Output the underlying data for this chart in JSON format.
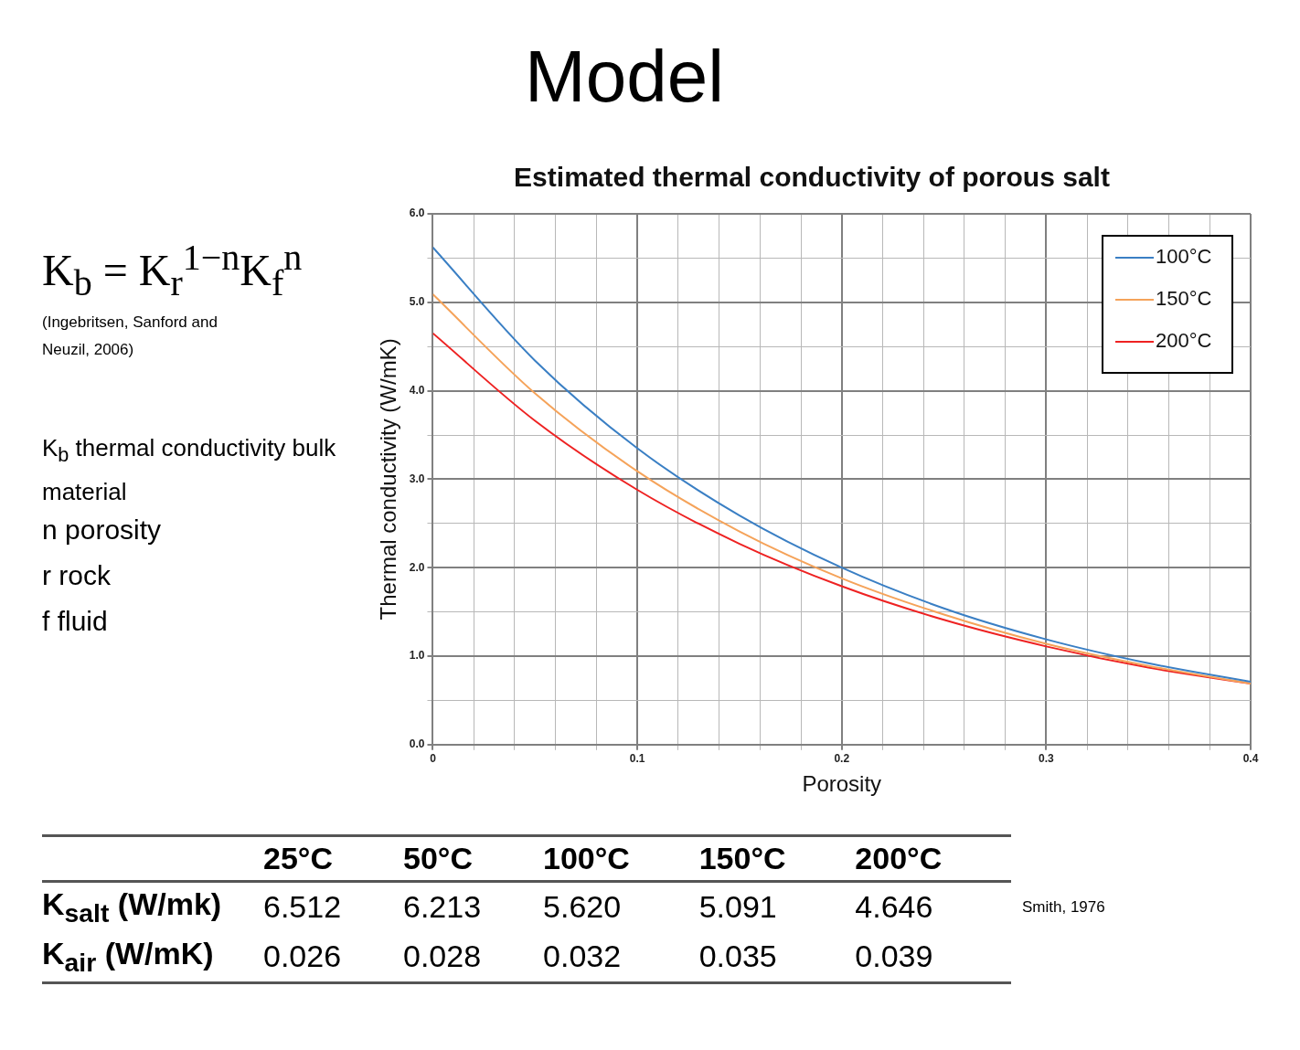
{
  "chart_data": {
    "type": "line",
    "title": "Model",
    "subtitle": "Estimated thermal conductivity of porous salt",
    "xlabel": "Porosity",
    "ylabel": "Thermal conductivity (W/mK)",
    "x": [
      0,
      0.05,
      0.1,
      0.15,
      0.2,
      0.25,
      0.3,
      0.35,
      0.4
    ],
    "series": [
      {
        "name": "100°C",
        "color": "#3a7fc4",
        "values": [
          5.62,
          4.34,
          3.35,
          2.59,
          2.0,
          1.54,
          1.19,
          0.92,
          0.71
        ]
      },
      {
        "name": "150°C",
        "color": "#f5a35a",
        "values": [
          5.09,
          3.97,
          3.09,
          2.41,
          1.88,
          1.47,
          1.14,
          0.89,
          0.69
        ]
      },
      {
        "name": "200°C",
        "color": "#ee2222",
        "values": [
          4.65,
          3.66,
          2.88,
          2.27,
          1.79,
          1.41,
          1.11,
          0.87,
          0.69
        ]
      }
    ],
    "xlim": [
      0,
      0.4
    ],
    "xticks": [
      0,
      {
        "value": 0.02,
        "label": null
      },
      {
        "value": 0.04,
        "label": null
      },
      {
        "value": 0.06,
        "label": null
      },
      {
        "value": 0.08,
        "label": null
      },
      0.1,
      {
        "value": 0.12,
        "label": null
      },
      {
        "value": 0.14,
        "label": null
      },
      {
        "value": 0.16,
        "label": null
      },
      {
        "value": 0.18,
        "label": null
      },
      0.2,
      {
        "value": 0.22,
        "label": null
      },
      {
        "value": 0.24,
        "label": null
      },
      {
        "value": 0.26,
        "label": null
      },
      {
        "value": 0.28,
        "label": null
      },
      0.3,
      {
        "value": 0.32,
        "label": null
      },
      {
        "value": 0.34,
        "label": null
      },
      {
        "value": 0.36,
        "label": null
      },
      {
        "value": 0.38,
        "label": null
      },
      0.4
    ],
    "ylim": [
      0,
      6
    ],
    "yticks": [
      {
        "value": 0,
        "label": "0.0"
      },
      {
        "value": 0.5,
        "label": null
      },
      {
        "value": 1,
        "label": "1.0"
      },
      {
        "value": 1.5,
        "label": null
      },
      {
        "value": 2,
        "label": "2.0"
      },
      {
        "value": 2.5,
        "label": null
      },
      {
        "value": 3,
        "label": "3.0"
      },
      {
        "value": 3.5,
        "label": null
      },
      {
        "value": 4,
        "label": "4.0"
      },
      {
        "value": 4.5,
        "label": null
      },
      {
        "value": 5,
        "label": "5.0"
      },
      {
        "value": 5.5,
        "label": null
      },
      {
        "value": 6,
        "label": "6.0"
      }
    ],
    "grid": true,
    "legend": "top right",
    "marker": "none",
    "line_style": "solid",
    "annotations": [
      "K$_{b}$ = K$_{r}$$^{1−n}$K$_{f}$$^{n}$",
      "(Ingebritsen, Sanford and Neuzil, 2006)",
      "K$_{b}$ thermal conductivity bulk material",
      "n porosity",
      "r rock",
      "f fluid",
      "Smith, 1976",
      "25°C",
      "50°C",
      "100°C",
      "150°C",
      "200°C",
      "K$_{salt}$ (W/mk)",
      "6.512",
      "6.213",
      "5.620",
      "5.091",
      "4.646",
      "K$_{air}$ (W/mK)",
      "0.026",
      "0.028",
      "0.032",
      "0.035",
      "0.039"
    ]
  }
}
